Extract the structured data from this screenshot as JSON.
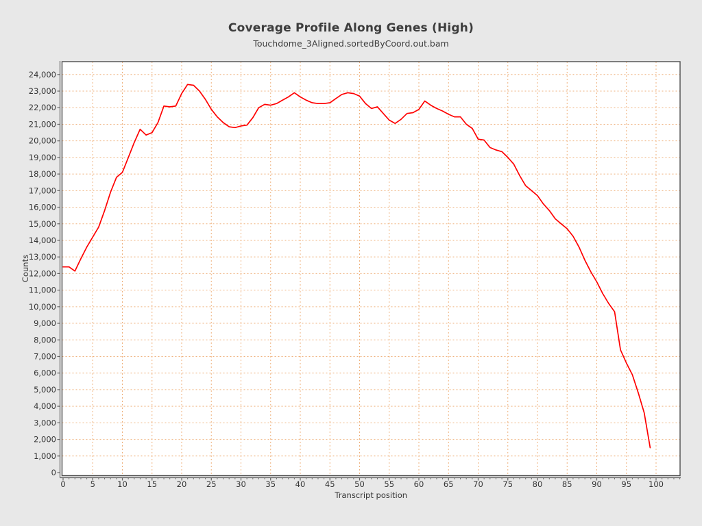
{
  "chart_data": {
    "type": "line",
    "title": "Coverage Profile Along Genes (High)",
    "subtitle": "Touchdome_3Aligned.sortedByCoord.out.bam",
    "xlabel": "Transcript position",
    "ylabel": "Counts",
    "x_axis": {
      "min": 0,
      "max": 100,
      "label_step": 5,
      "minor_step": 1,
      "minor_overhang": 4
    },
    "y_axis": {
      "min": 0,
      "max": 24000,
      "step": 1000
    },
    "grid": {
      "show": true,
      "color": "#efb27e",
      "dash": "2 3"
    },
    "legend": {
      "show": false
    },
    "colors": {
      "figure_background": "#e8e8e8",
      "plot_background": "#ffffff",
      "plot_border": "#4d4d4d",
      "axis_line": "#666666",
      "tick_text": "#363636",
      "title_text": "#3d3d3d"
    },
    "series": [
      {
        "name": "coverage",
        "color": "#ff0000",
        "x_start": 0,
        "x_step": 1,
        "values": [
          12400,
          12400,
          12150,
          12900,
          13600,
          14200,
          14800,
          15800,
          16900,
          17800,
          18100,
          19000,
          19900,
          20700,
          20350,
          20500,
          21100,
          22100,
          22050,
          22100,
          22850,
          23400,
          23350,
          23000,
          22500,
          21900,
          21450,
          21100,
          20850,
          20800,
          20900,
          20950,
          21400,
          22000,
          22200,
          22150,
          22250,
          22450,
          22650,
          22900,
          22650,
          22450,
          22300,
          22250,
          22250,
          22300,
          22550,
          22800,
          22900,
          22850,
          22700,
          22250,
          21950,
          22050,
          21650,
          21250,
          21050,
          21300,
          21650,
          21700,
          21900,
          22400,
          22150,
          21950,
          21800,
          21600,
          21450,
          21450,
          21000,
          20750,
          20100,
          20050,
          19600,
          19450,
          19350,
          19000,
          18600,
          17900,
          17300,
          17000,
          16700,
          16200,
          15800,
          15300,
          15000,
          14700,
          14250,
          13600,
          12800,
          12100,
          11500,
          10800,
          10200,
          9700,
          7400,
          6600,
          5900,
          4800,
          3600,
          1500
        ]
      }
    ]
  }
}
